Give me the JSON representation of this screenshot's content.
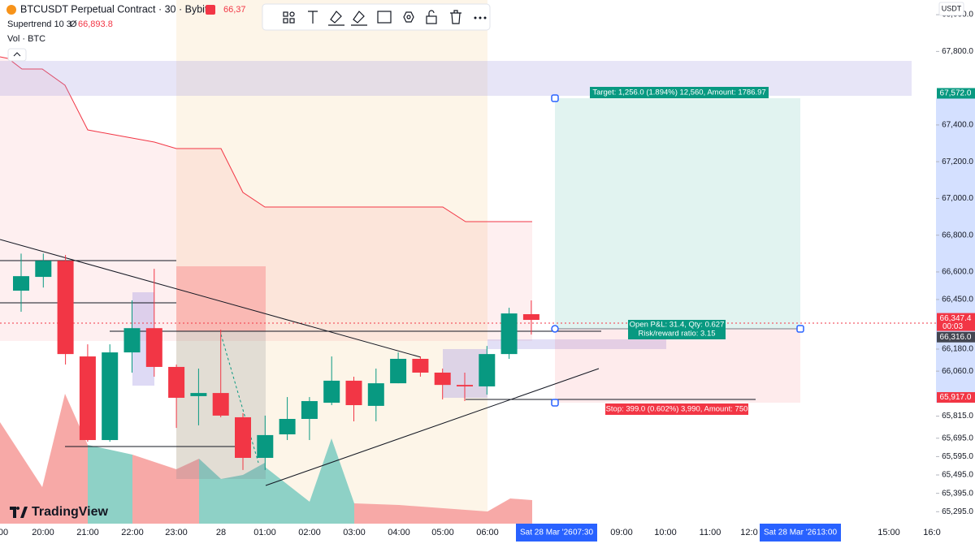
{
  "header": {
    "symbol": "BTCUSDT Perpetual Contract · 30 · Bybit",
    "last": "66,37",
    "indicator": "Supertrend 10 3",
    "indicator_value": "66,893.8",
    "volume": "Vol · BTC",
    "currency": "USDT"
  },
  "price_axis": {
    "ylim": [
      65230,
      68080
    ],
    "ticks": [
      {
        "value": 68000,
        "label": "68,000.0"
      },
      {
        "value": 67800,
        "label": "67,800.0"
      },
      {
        "value": 67400,
        "label": "67,400.0"
      },
      {
        "value": 67200,
        "label": "67,200.0"
      },
      {
        "value": 67000,
        "label": "67,000.0"
      },
      {
        "value": 66800,
        "label": "66,800.0"
      },
      {
        "value": 66600,
        "label": "66,600.0"
      },
      {
        "value": 66450,
        "label": "66,450.0"
      },
      {
        "value": 66180,
        "label": "66,180.0"
      },
      {
        "value": 66060,
        "label": "66,060.0"
      },
      {
        "value": 65815,
        "label": "65,815.0"
      },
      {
        "value": 65695,
        "label": "65,695.0"
      },
      {
        "value": 65595,
        "label": "65,595.0"
      },
      {
        "value": 65495,
        "label": "65,495.0"
      },
      {
        "value": 65395,
        "label": "65,395.0"
      },
      {
        "value": 65295,
        "label": "65,295.0"
      }
    ]
  },
  "price_tags": [
    {
      "value": 67572,
      "label": "67,572.0",
      "color": "#089981"
    },
    {
      "value": 66347.4,
      "label": "66,347.4",
      "color": "#f23645",
      "countdown": "00:03"
    },
    {
      "value": 66316,
      "label": "66,316.0",
      "color": "#434651"
    },
    {
      "value": 65917,
      "label": "65,917.0",
      "color": "#f23645"
    }
  ],
  "time_axis": {
    "labels": [
      "00",
      "20:00",
      "21:00",
      "22:00",
      "23:00",
      "28",
      "01:00",
      "02:00",
      "03:00",
      "04:00",
      "05:00",
      "06:00",
      "09:00",
      "10:00",
      "11:00",
      "12:0",
      "15:00",
      "16:0"
    ],
    "cursor": {
      "date": "Sat 28 Mar '26",
      "time": "07:30"
    },
    "end": {
      "date": "Sat 28 Mar '26",
      "time": "13:00"
    }
  },
  "candles": [
    {
      "open": 66498,
      "high": 66700,
      "low": 66383,
      "close": 66577
    },
    {
      "open": 66573,
      "high": 66700,
      "low": 66515,
      "close": 66661
    },
    {
      "open": 66661,
      "high": 66692,
      "low": 66096,
      "close": 66153
    },
    {
      "open": 66140,
      "high": 66206,
      "low": 65676,
      "close": 65685
    },
    {
      "open": 65685,
      "high": 66206,
      "low": 65676,
      "close": 66162
    },
    {
      "open": 66162,
      "high": 66445,
      "low": 66052,
      "close": 66294
    },
    {
      "open": 66294,
      "high": 66617,
      "low": 66030,
      "close": 66083
    },
    {
      "open": 66083,
      "high": 66096,
      "low": 65751,
      "close": 65915
    },
    {
      "open": 65924,
      "high": 66074,
      "low": 65765,
      "close": 65941
    },
    {
      "open": 65941,
      "high": 66286,
      "low": 65809,
      "close": 65818
    },
    {
      "open": 65809,
      "high": 65831,
      "low": 65522,
      "close": 65588
    },
    {
      "open": 65588,
      "high": 65818,
      "low": 65522,
      "close": 65712
    },
    {
      "open": 65716,
      "high": 65919,
      "low": 65685,
      "close": 65800
    },
    {
      "open": 65800,
      "high": 65919,
      "low": 65685,
      "close": 65897
    },
    {
      "open": 65888,
      "high": 66140,
      "low": 65875,
      "close": 66008
    },
    {
      "open": 66008,
      "high": 66030,
      "low": 65787,
      "close": 65875
    },
    {
      "open": 65871,
      "high": 66074,
      "low": 65787,
      "close": 65994
    },
    {
      "open": 65994,
      "high": 66162,
      "low": 65994,
      "close": 66127
    },
    {
      "open": 66127,
      "high": 66140,
      "low": 66030,
      "close": 66052
    },
    {
      "open": 66052,
      "high": 66074,
      "low": 65906,
      "close": 65985
    },
    {
      "open": 65985,
      "high": 66052,
      "low": 65897,
      "close": 65977
    },
    {
      "open": 65977,
      "high": 66197,
      "low": 65932,
      "close": 66153
    },
    {
      "open": 66153,
      "high": 66405,
      "low": 66127,
      "close": 66374
    },
    {
      "open": 66370,
      "high": 66445,
      "low": 66259,
      "close": 66339
    }
  ],
  "candle_colors": {
    "up": "#089981",
    "down": "#f23645"
  },
  "position": {
    "target": "Target: 1,256.0 (1.894%) 12,560, Amount: 1786.97",
    "pnl": "Open P&L: 31.4, Qty: 0.627",
    "ratio": "Risk/reward ratio: 3.15",
    "stop": "Stop: 399.0 (0.602%) 3,990, Amount: 750"
  },
  "logo": "TradingView"
}
